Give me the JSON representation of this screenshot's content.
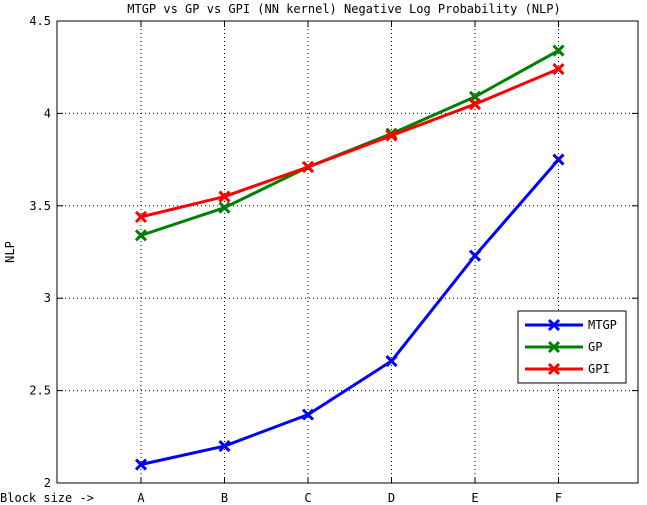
{
  "chart_data": {
    "type": "line",
    "title": "MTGP vs GP vs GPI (NN kernel) Negative Log Probability (NLP)",
    "xlabel": "Block size ->",
    "ylabel": "NLP",
    "categories": [
      "A",
      "B",
      "C",
      "D",
      "E",
      "F"
    ],
    "ylim": [
      2,
      4.5
    ],
    "yticks": [
      "2",
      "2.5",
      "3",
      "3.5",
      "4",
      "4.5"
    ],
    "grid": true,
    "legend_position": "right",
    "series": [
      {
        "name": "MTGP",
        "color": "#0000ff",
        "marker": "x",
        "values": [
          2.1,
          2.2,
          2.37,
          2.66,
          3.23,
          3.75
        ]
      },
      {
        "name": "GP",
        "color": "#008000",
        "marker": "x",
        "values": [
          3.34,
          3.49,
          3.71,
          3.89,
          4.09,
          4.34
        ]
      },
      {
        "name": "GPI",
        "color": "#ff0000",
        "marker": "x",
        "values": [
          3.44,
          3.55,
          3.71,
          3.88,
          4.05,
          4.24
        ]
      }
    ]
  }
}
